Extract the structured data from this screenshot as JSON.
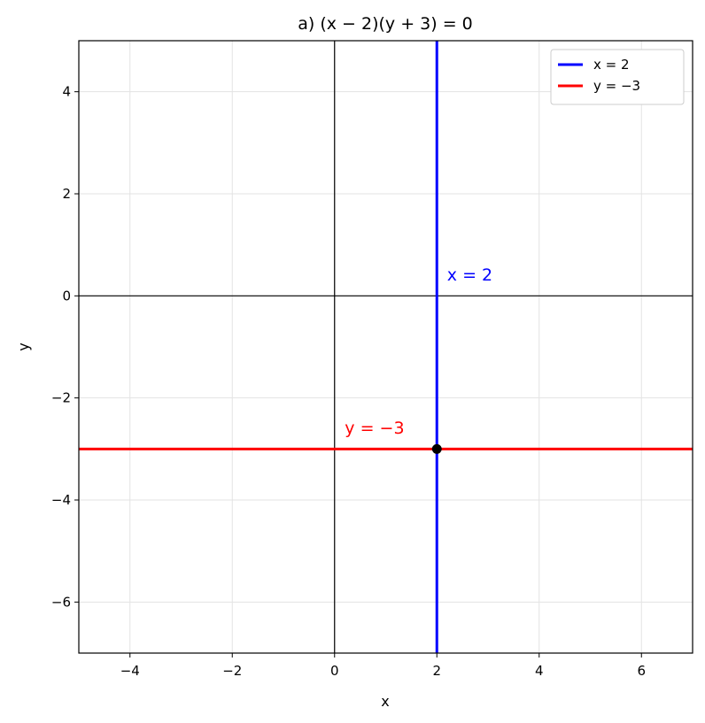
{
  "chart_data": {
    "type": "line",
    "title": "a) (x − 2)(y + 3) = 0",
    "xlabel": "x",
    "ylabel": "y",
    "xlim": [
      -5,
      7
    ],
    "ylim": [
      -7,
      5
    ],
    "xticks": [
      {
        "value": -4,
        "label": "−4"
      },
      {
        "value": -2,
        "label": "−2"
      },
      0,
      2,
      4,
      6
    ],
    "yticks": [
      {
        "value": -6,
        "label": "−6"
      },
      {
        "value": -4,
        "label": "−4"
      },
      {
        "value": -2,
        "label": "−2"
      },
      0,
      2,
      4
    ],
    "grid": true,
    "zero_lines": true,
    "legend": "upper right",
    "series": [
      {
        "name": "x = 2",
        "color": "#0000ff",
        "x": [
          2,
          2
        ],
        "values": [
          -7,
          5
        ]
      },
      {
        "name": "y = −3",
        "color": "#ff0000",
        "x": [
          -5,
          7
        ],
        "values": [
          -3,
          -3
        ]
      }
    ],
    "points": [
      {
        "x": 2,
        "y": -3,
        "color": "#000000"
      }
    ],
    "annotations": [
      {
        "text": "x = 2",
        "x": 2.2,
        "y": 0.3,
        "color": "#0000ff"
      },
      {
        "text": "y = −3",
        "x": 0.2,
        "y": -2.7,
        "color": "#ff0000"
      }
    ]
  }
}
